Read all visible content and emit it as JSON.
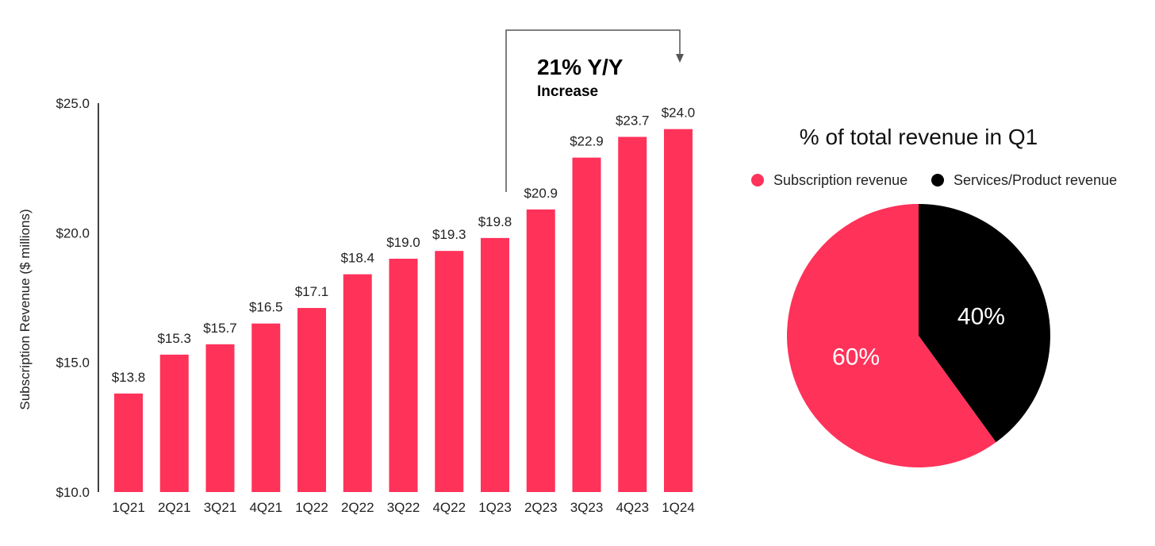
{
  "colors": {
    "accent": "#FF325A",
    "dark": "#000000",
    "text": "#222222",
    "axis": "#000000",
    "arrow": "#555555",
    "pie_label": "#ffffff"
  },
  "chart_data": [
    {
      "type": "bar",
      "title": "",
      "xlabel": "",
      "ylabel": "Subscription Revenue ($ millions)",
      "ylim": [
        10,
        25
      ],
      "y_ticks": [
        10,
        15,
        20,
        25
      ],
      "y_tick_labels": [
        "$10.0",
        "$15.0",
        "$20.0",
        "$25.0"
      ],
      "grid": false,
      "categories": [
        "1Q21",
        "2Q21",
        "3Q21",
        "4Q21",
        "1Q22",
        "2Q22",
        "3Q22",
        "4Q22",
        "1Q23",
        "2Q23",
        "3Q23",
        "4Q23",
        "1Q24"
      ],
      "values": [
        13.8,
        15.3,
        15.7,
        16.5,
        17.1,
        18.4,
        19.0,
        19.3,
        19.8,
        20.9,
        22.9,
        23.7,
        24.0
      ],
      "value_labels": [
        "$13.8",
        "$15.3",
        "$15.7",
        "$16.5",
        "$17.1",
        "$18.4",
        "$19.0",
        "$19.3",
        "$19.8",
        "$20.9",
        "$22.9",
        "$23.7",
        "$24.0"
      ],
      "annotation": {
        "from_category": "1Q23",
        "to_category": "1Q24",
        "headline": "21% Y/Y",
        "subline": "Increase"
      }
    },
    {
      "type": "pie",
      "title": "% of total revenue in Q1",
      "legend_position": "top",
      "slices": [
        {
          "name": "Subscription revenue",
          "value": 60,
          "label": "60%"
        },
        {
          "name": "Services/Product revenue",
          "value": 40,
          "label": "40%"
        }
      ]
    }
  ]
}
